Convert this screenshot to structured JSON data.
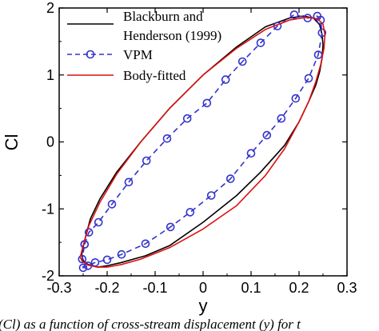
{
  "chart_data": {
    "type": "line",
    "xlabel": "y",
    "ylabel": "Cl",
    "xlim": [
      -0.3,
      0.3
    ],
    "ylim": [
      -2,
      2
    ],
    "x_ticks": [
      "-0.3",
      "-0.2",
      "-0.1",
      "0",
      "0.1",
      "0.2",
      "0.3"
    ],
    "y_ticks": [
      "-2",
      "-1",
      "0",
      "1",
      "2"
    ],
    "grid": false,
    "legend_position": "top-left",
    "legend": {
      "blackburn_line1": "Blackburn and",
      "blackburn_line2": "Henderson (1999)",
      "vpm": "VPM",
      "body_fitted": "Body-fitted"
    },
    "series": [
      {
        "name": "Blackburn and Henderson (1999)",
        "style": "solid-line",
        "color": "#000000",
        "x": [
          -0.253,
          -0.248,
          -0.235,
          -0.215,
          -0.18,
          -0.13,
          -0.07,
          0.0,
          0.07,
          0.13,
          0.18,
          0.21,
          0.23,
          0.243,
          0.248,
          0.25,
          0.248,
          0.243,
          0.235,
          0.22,
          0.2,
          0.17,
          0.12,
          0.07,
          0.0,
          -0.07,
          -0.12,
          -0.17,
          -0.2,
          -0.22,
          -0.24,
          -0.25,
          -0.253
        ],
        "y": [
          -1.68,
          -1.5,
          -1.15,
          -0.85,
          -0.45,
          0.0,
          0.5,
          1.0,
          1.42,
          1.72,
          1.85,
          1.88,
          1.85,
          1.75,
          1.6,
          1.45,
          1.25,
          1.05,
          0.85,
          0.6,
          0.3,
          -0.05,
          -0.45,
          -0.8,
          -1.2,
          -1.55,
          -1.7,
          -1.8,
          -1.85,
          -1.87,
          -1.83,
          -1.77,
          -1.68
        ]
      },
      {
        "name": "VPM",
        "style": "dashed-circles",
        "color": "#3333cc",
        "x": [
          -0.247,
          -0.238,
          -0.218,
          -0.19,
          -0.155,
          -0.118,
          -0.075,
          -0.033,
          0.008,
          0.047,
          0.082,
          0.12,
          0.155,
          0.19,
          0.218,
          0.238,
          0.245,
          0.248,
          0.24,
          0.22,
          0.193,
          0.163,
          0.133,
          0.1,
          0.057,
          0.017,
          -0.027,
          -0.068,
          -0.12,
          -0.17,
          -0.2,
          -0.225,
          -0.24,
          -0.25,
          -0.252,
          -0.247
        ],
        "y": [
          -1.53,
          -1.35,
          -1.2,
          -0.93,
          -0.6,
          -0.28,
          0.05,
          0.35,
          0.58,
          0.93,
          1.2,
          1.48,
          1.73,
          1.9,
          1.85,
          1.88,
          1.82,
          1.63,
          1.3,
          0.95,
          0.65,
          0.35,
          0.1,
          -0.17,
          -0.55,
          -0.8,
          -1.05,
          -1.27,
          -1.52,
          -1.68,
          -1.76,
          -1.8,
          -1.85,
          -1.88,
          -1.75,
          -1.53
        ]
      },
      {
        "name": "Body-fitted",
        "style": "solid-line",
        "color": "#dd1111",
        "x": [
          -0.256,
          -0.25,
          -0.238,
          -0.215,
          -0.18,
          -0.13,
          -0.07,
          0.0,
          0.07,
          0.13,
          0.18,
          0.215,
          0.238,
          0.25,
          0.254,
          0.252,
          0.245,
          0.235,
          0.22,
          0.2,
          0.17,
          0.13,
          0.07,
          0.0,
          -0.07,
          -0.13,
          -0.17,
          -0.2,
          -0.22,
          -0.24,
          -0.252,
          -0.256
        ],
        "y": [
          -1.72,
          -1.55,
          -1.25,
          -0.9,
          -0.48,
          0.0,
          0.5,
          1.0,
          1.4,
          1.68,
          1.82,
          1.86,
          1.84,
          1.76,
          1.6,
          1.4,
          1.15,
          0.9,
          0.6,
          0.3,
          -0.1,
          -0.5,
          -0.95,
          -1.3,
          -1.58,
          -1.75,
          -1.83,
          -1.87,
          -1.87,
          -1.84,
          -1.78,
          -1.72
        ]
      }
    ]
  },
  "caption": "(Cl) as a function of cross-stream displacement (y) for t"
}
